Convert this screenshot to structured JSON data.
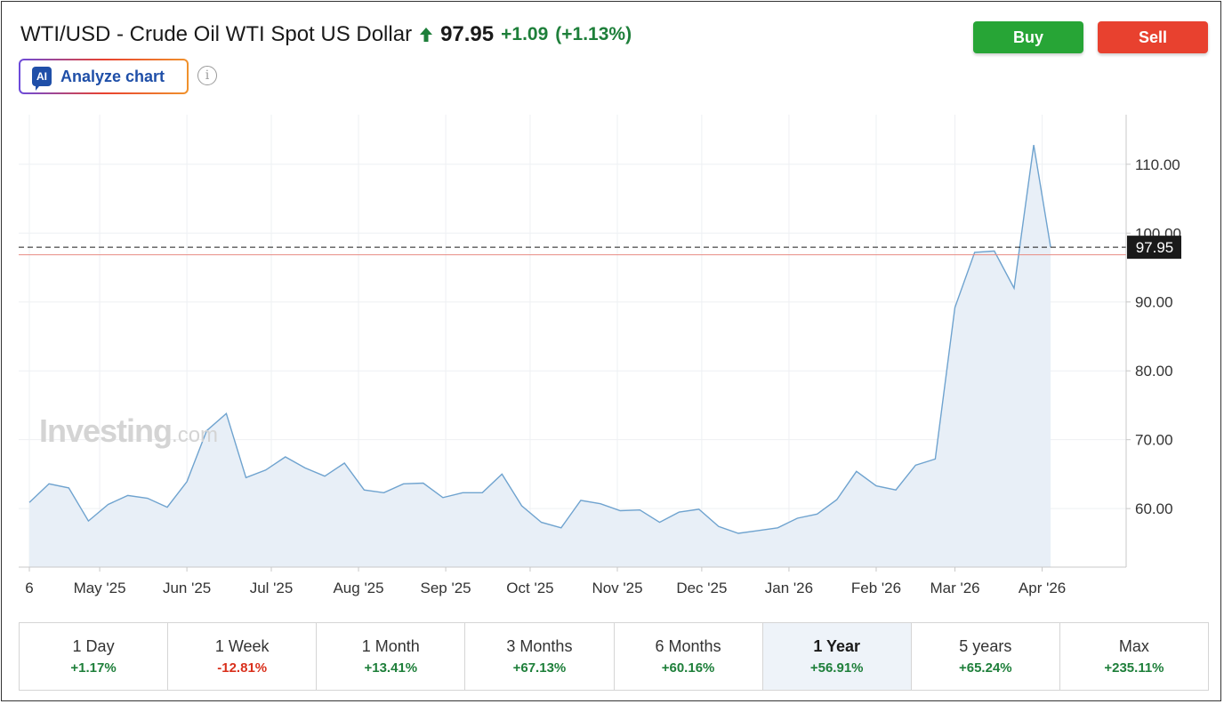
{
  "header": {
    "instrument": "WTI/USD - Crude Oil WTI Spot US Dollar",
    "price": "97.95",
    "change": "+1.09",
    "change_pct": "(+1.13%)",
    "up_color": "#1e7f3a"
  },
  "actions": {
    "buy_label": "Buy",
    "sell_label": "Sell",
    "buy_color": "#27a536",
    "sell_color": "#e8412f"
  },
  "analyze": {
    "badge": "AI",
    "label": "Analyze chart",
    "info_icon": "info-icon"
  },
  "watermark": {
    "main": "Investing",
    "sub": ".com"
  },
  "chart_data": {
    "type": "area",
    "title": "",
    "xlabel": "",
    "ylabel": "",
    "ylim": [
      51.5,
      117.2
    ],
    "yticks": [
      60,
      70,
      80,
      90,
      100,
      110
    ],
    "ytick_labels": [
      "60.00",
      "70.00",
      "80.00",
      "90.00",
      "100.00",
      "110.00"
    ],
    "xlim": [
      "2025-04-06",
      "2026-04-22"
    ],
    "xticks": [
      {
        "date": "2025-04-06",
        "label": "6"
      },
      {
        "date": "2025-05-01",
        "label": "May '25"
      },
      {
        "date": "2025-06-01",
        "label": "Jun '25"
      },
      {
        "date": "2025-07-01",
        "label": "Jul '25"
      },
      {
        "date": "2025-08-01",
        "label": "Aug '25"
      },
      {
        "date": "2025-09-01",
        "label": "Sep '25"
      },
      {
        "date": "2025-10-01",
        "label": "Oct '25"
      },
      {
        "date": "2025-11-01",
        "label": "Nov '25"
      },
      {
        "date": "2025-12-01",
        "label": "Dec '25"
      },
      {
        "date": "2026-01-01",
        "label": "Jan '26"
      },
      {
        "date": "2026-02-01",
        "label": "Feb '26"
      },
      {
        "date": "2026-03-01",
        "label": "Mar '26"
      },
      {
        "date": "2026-04-01",
        "label": "Apr '26"
      }
    ],
    "grid": true,
    "series": [
      {
        "color": "#6fa3cf",
        "fill": "#e8eff7",
        "points": [
          {
            "x": "2025-04-06",
            "y": 60.9
          },
          {
            "x": "2025-04-13",
            "y": 63.6
          },
          {
            "x": "2025-04-20",
            "y": 63.0
          },
          {
            "x": "2025-04-27",
            "y": 58.2
          },
          {
            "x": "2025-05-04",
            "y": 60.6
          },
          {
            "x": "2025-05-11",
            "y": 61.9
          },
          {
            "x": "2025-05-18",
            "y": 61.5
          },
          {
            "x": "2025-05-25",
            "y": 60.2
          },
          {
            "x": "2025-06-01",
            "y": 63.9
          },
          {
            "x": "2025-06-08",
            "y": 71.3
          },
          {
            "x": "2025-06-15",
            "y": 73.8
          },
          {
            "x": "2025-06-22",
            "y": 64.5
          },
          {
            "x": "2025-06-29",
            "y": 65.6
          },
          {
            "x": "2025-07-06",
            "y": 67.5
          },
          {
            "x": "2025-07-13",
            "y": 65.9
          },
          {
            "x": "2025-07-20",
            "y": 64.7
          },
          {
            "x": "2025-07-27",
            "y": 66.6
          },
          {
            "x": "2025-08-03",
            "y": 62.7
          },
          {
            "x": "2025-08-10",
            "y": 62.3
          },
          {
            "x": "2025-08-17",
            "y": 63.6
          },
          {
            "x": "2025-08-24",
            "y": 63.7
          },
          {
            "x": "2025-08-31",
            "y": 61.6
          },
          {
            "x": "2025-09-07",
            "y": 62.3
          },
          {
            "x": "2025-09-14",
            "y": 62.3
          },
          {
            "x": "2025-09-21",
            "y": 65.0
          },
          {
            "x": "2025-09-28",
            "y": 60.4
          },
          {
            "x": "2025-10-05",
            "y": 58.0
          },
          {
            "x": "2025-10-12",
            "y": 57.2
          },
          {
            "x": "2025-10-19",
            "y": 61.2
          },
          {
            "x": "2025-10-26",
            "y": 60.7
          },
          {
            "x": "2025-11-02",
            "y": 59.7
          },
          {
            "x": "2025-11-09",
            "y": 59.8
          },
          {
            "x": "2025-11-16",
            "y": 58.0
          },
          {
            "x": "2025-11-23",
            "y": 59.5
          },
          {
            "x": "2025-11-30",
            "y": 59.9
          },
          {
            "x": "2025-12-07",
            "y": 57.4
          },
          {
            "x": "2025-12-14",
            "y": 56.4
          },
          {
            "x": "2025-12-21",
            "y": 56.8
          },
          {
            "x": "2025-12-28",
            "y": 57.2
          },
          {
            "x": "2026-01-04",
            "y": 58.6
          },
          {
            "x": "2026-01-11",
            "y": 59.2
          },
          {
            "x": "2026-01-18",
            "y": 61.3
          },
          {
            "x": "2026-01-25",
            "y": 65.4
          },
          {
            "x": "2026-02-01",
            "y": 63.3
          },
          {
            "x": "2026-02-08",
            "y": 62.7
          },
          {
            "x": "2026-02-15",
            "y": 66.3
          },
          {
            "x": "2026-02-22",
            "y": 67.2
          },
          {
            "x": "2026-03-01",
            "y": 89.2
          },
          {
            "x": "2026-03-08",
            "y": 97.2
          },
          {
            "x": "2026-03-15",
            "y": 97.4
          },
          {
            "x": "2026-03-22",
            "y": 92.0
          },
          {
            "x": "2026-03-29",
            "y": 112.8
          },
          {
            "x": "2026-04-04",
            "y": 97.95
          }
        ]
      }
    ],
    "current_price_line": {
      "value": 97.95,
      "label": "97.95",
      "color": "#1a1a1a"
    },
    "reference_line": {
      "value": 96.86,
      "color": "#e88b82"
    }
  },
  "periods": [
    {
      "label": "1 Day",
      "change": "+1.17%",
      "direction": "pos",
      "active": false
    },
    {
      "label": "1 Week",
      "change": "-12.81%",
      "direction": "neg",
      "active": false
    },
    {
      "label": "1 Month",
      "change": "+13.41%",
      "direction": "pos",
      "active": false
    },
    {
      "label": "3 Months",
      "change": "+67.13%",
      "direction": "pos",
      "active": false
    },
    {
      "label": "6 Months",
      "change": "+60.16%",
      "direction": "pos",
      "active": false
    },
    {
      "label": "1 Year",
      "change": "+56.91%",
      "direction": "pos",
      "active": true
    },
    {
      "label": "5 years",
      "change": "+65.24%",
      "direction": "pos",
      "active": false
    },
    {
      "label": "Max",
      "change": "+235.11%",
      "direction": "pos",
      "active": false
    }
  ]
}
